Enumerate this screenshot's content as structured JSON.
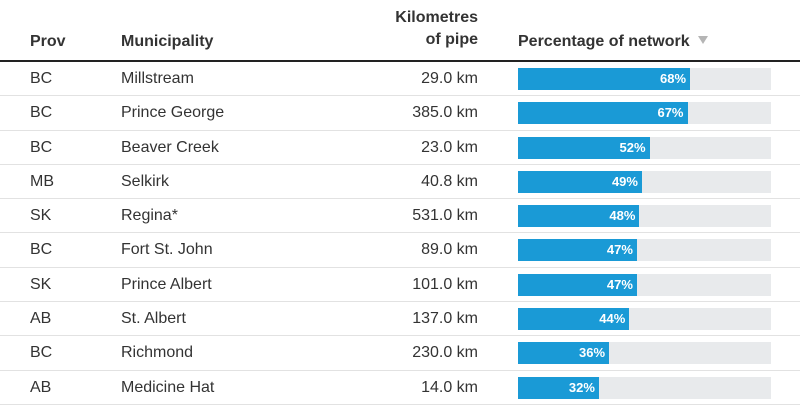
{
  "header": {
    "prov": "Prov",
    "municipality": "Municipality",
    "km_line1": "Kilometres",
    "km_line2": "of pipe",
    "percentage": "Percentage of network"
  },
  "colors": {
    "bar": "#1a9ad6",
    "track": "#e8eaec"
  },
  "icons": {
    "sort": "sort-descending-icon"
  },
  "rows": [
    {
      "prov": "BC",
      "municipality": "Millstream",
      "km": "29.0 km",
      "pct_label": "68%",
      "pct": 68
    },
    {
      "prov": "BC",
      "municipality": "Prince George",
      "km": "385.0 km",
      "pct_label": "67%",
      "pct": 67
    },
    {
      "prov": "BC",
      "municipality": "Beaver Creek",
      "km": "23.0 km",
      "pct_label": "52%",
      "pct": 52
    },
    {
      "prov": "MB",
      "municipality": "Selkirk",
      "km": "40.8 km",
      "pct_label": "49%",
      "pct": 49
    },
    {
      "prov": "SK",
      "municipality": "Regina*",
      "km": "531.0 km",
      "pct_label": "48%",
      "pct": 48
    },
    {
      "prov": "BC",
      "municipality": "Fort St. John",
      "km": "89.0 km",
      "pct_label": "47%",
      "pct": 47
    },
    {
      "prov": "SK",
      "municipality": "Prince Albert",
      "km": "101.0 km",
      "pct_label": "47%",
      "pct": 47
    },
    {
      "prov": "AB",
      "municipality": "St. Albert",
      "km": "137.0 km",
      "pct_label": "44%",
      "pct": 44
    },
    {
      "prov": "BC",
      "municipality": "Richmond",
      "km": "230.0 km",
      "pct_label": "36%",
      "pct": 36
    },
    {
      "prov": "AB",
      "municipality": "Medicine Hat",
      "km": "14.0 km",
      "pct_label": "32%",
      "pct": 32
    }
  ]
}
